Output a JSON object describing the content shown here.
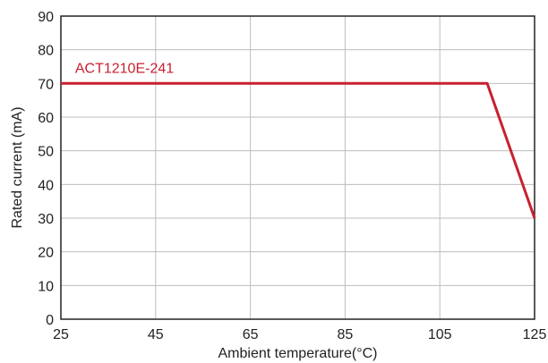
{
  "chart_data": {
    "type": "line",
    "title": "",
    "xlabel": "Ambient temperature(°C)",
    "ylabel": "Rated current (mA)",
    "xlim": [
      25,
      125
    ],
    "ylim": [
      0,
      90
    ],
    "x_ticks": [
      25,
      45,
      65,
      85,
      105,
      125
    ],
    "y_ticks": [
      0,
      10,
      20,
      30,
      40,
      50,
      60,
      70,
      80,
      90
    ],
    "grid": true,
    "series": [
      {
        "name": "ACT1210E-241",
        "color": "#c8202f",
        "points": [
          {
            "x": 25,
            "y": 70
          },
          {
            "x": 115,
            "y": 70
          },
          {
            "x": 125,
            "y": 30
          }
        ]
      }
    ]
  }
}
